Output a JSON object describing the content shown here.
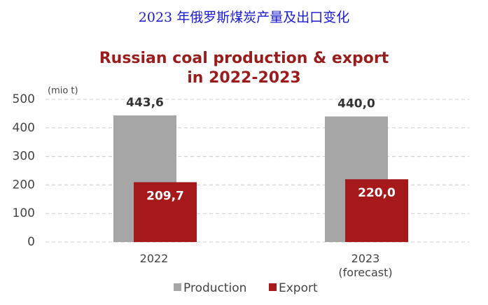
{
  "header": {
    "title": "2023 年俄罗斯煤炭产量及出口变化"
  },
  "chart_data": {
    "type": "bar",
    "title": "Russian coal production & export\nin 2022-2023",
    "y_label": "(mio t)",
    "categories": [
      "2022",
      "2023\n(forecast)"
    ],
    "series": [
      {
        "name": "Production",
        "color": "#a6a6a6",
        "values": [
          443.6,
          440.0
        ],
        "value_labels": [
          "443,6",
          "440,0"
        ]
      },
      {
        "name": "Export",
        "color": "#a5191b",
        "values": [
          209.7,
          220.0
        ],
        "value_labels": [
          "209,7",
          "220,0"
        ]
      }
    ],
    "ylim": [
      0,
      500
    ],
    "yticks": [
      0,
      100,
      200,
      300,
      400,
      500
    ],
    "grid": true
  }
}
